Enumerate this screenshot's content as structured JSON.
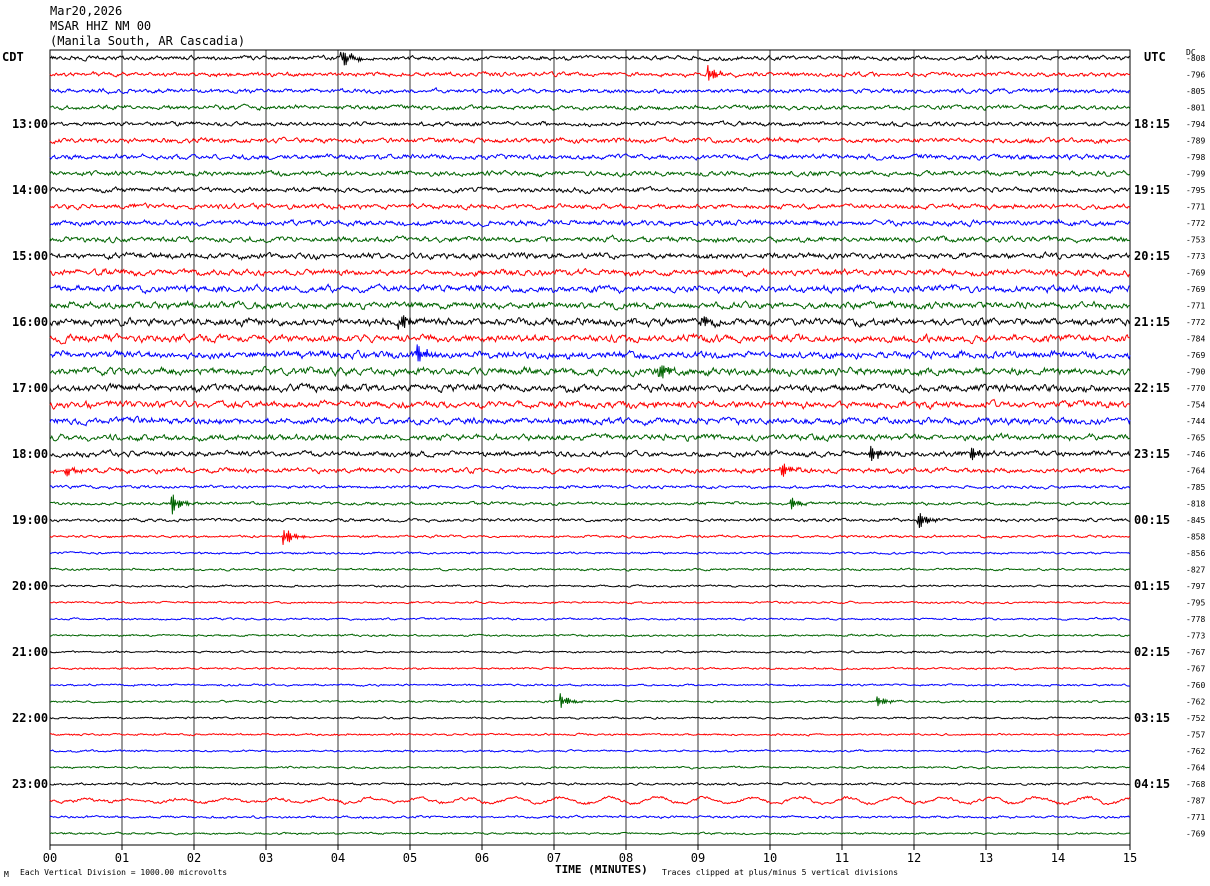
{
  "header": {
    "date": "Mar20,2026",
    "station": "MSAR HHZ NM 00",
    "location": "(Manila South, AR Cascadia)"
  },
  "left_zone": "CDT",
  "right_zone": "UTC",
  "dc_label": "DC",
  "footer": {
    "scale_note": "Each Vertical Division = 1000.00 microvolts",
    "clip_note": "Traces clipped at plus/minus 5 vertical divisions",
    "corner_mark": "M"
  },
  "colors": {
    "trace": [
      "#000000",
      "#ff0000",
      "#0000ff",
      "#006400"
    ],
    "grid": "#000000"
  },
  "chart_data": {
    "type": "line",
    "xlabel": "TIME (MINUTES)",
    "xlim": [
      0,
      15
    ],
    "x_ticks": [
      "00",
      "01",
      "02",
      "03",
      "04",
      "05",
      "06",
      "07",
      "08",
      "09",
      "10",
      "11",
      "12",
      "13",
      "14",
      "15"
    ],
    "rows": 48,
    "hour_labels_left": [
      {
        "row": 4,
        "label": "13:00"
      },
      {
        "row": 8,
        "label": "14:00"
      },
      {
        "row": 12,
        "label": "15:00"
      },
      {
        "row": 16,
        "label": "16:00"
      },
      {
        "row": 20,
        "label": "17:00"
      },
      {
        "row": 24,
        "label": "18:00"
      },
      {
        "row": 28,
        "label": "19:00"
      },
      {
        "row": 32,
        "label": "20:00"
      },
      {
        "row": 36,
        "label": "21:00"
      },
      {
        "row": 40,
        "label": "22:00"
      },
      {
        "row": 44,
        "label": "23:00"
      }
    ],
    "hour_labels_right": [
      {
        "row": 4,
        "label": "18:15"
      },
      {
        "row": 8,
        "label": "19:15"
      },
      {
        "row": 12,
        "label": "20:15"
      },
      {
        "row": 16,
        "label": "21:15"
      },
      {
        "row": 20,
        "label": "22:15"
      },
      {
        "row": 24,
        "label": "23:15"
      },
      {
        "row": 28,
        "label": "00:15"
      },
      {
        "row": 32,
        "label": "01:15"
      },
      {
        "row": 36,
        "label": "02:15"
      },
      {
        "row": 40,
        "label": "03:15"
      },
      {
        "row": 44,
        "label": "04:15"
      }
    ],
    "dc_offsets": [
      "-808",
      "-796",
      "-805",
      "-801",
      "-794",
      "-789",
      "-798",
      "-799",
      "-795",
      "-771",
      "-772",
      "-753",
      "-773",
      "-769",
      "-769",
      "-771",
      "-772",
      "-784",
      "-769",
      "-790",
      "-770",
      "-754",
      "-744",
      "-765",
      "-746",
      "-764",
      "-785",
      "-818",
      "-845",
      "-858",
      "-856",
      "-827",
      "-797",
      "-795",
      "-778",
      "-773",
      "-767",
      "-767",
      "-760",
      "-762",
      "-752",
      "-757",
      "-762",
      "-764",
      "-768",
      "-787",
      "-771",
      "-769"
    ],
    "noise_amplitude": [
      3.5,
      3.5,
      3.5,
      3.5,
      3.5,
      4,
      4,
      4,
      4,
      4,
      4.5,
      4.5,
      5,
      5,
      5.5,
      5.5,
      6,
      6,
      6,
      6,
      6,
      5.5,
      5.5,
      5,
      4.5,
      4,
      2.5,
      2.5,
      2.5,
      2,
      1.8,
      1.8,
      1.6,
      1.6,
      1.6,
      1.6,
      1.6,
      1.6,
      1.6,
      1.6,
      1.6,
      1.6,
      1.6,
      1.6,
      1.8,
      2.5,
      2,
      1.6
    ],
    "events": [
      {
        "row": 0,
        "minute": 4.05,
        "amp": 10
      },
      {
        "row": 1,
        "minute": 9.15,
        "amp": 8
      },
      {
        "row": 16,
        "minute": 4.85,
        "amp": 10
      },
      {
        "row": 16,
        "minute": 9.05,
        "amp": 8
      },
      {
        "row": 18,
        "minute": 5.1,
        "amp": 9
      },
      {
        "row": 19,
        "minute": 8.45,
        "amp": 10
      },
      {
        "row": 24,
        "minute": 11.4,
        "amp": 8
      },
      {
        "row": 24,
        "minute": 12.8,
        "amp": 7
      },
      {
        "row": 25,
        "minute": 10.15,
        "amp": 10
      },
      {
        "row": 25,
        "minute": 0.2,
        "amp": 6
      },
      {
        "row": 27,
        "minute": 1.7,
        "amp": 10
      },
      {
        "row": 27,
        "minute": 10.3,
        "amp": 6
      },
      {
        "row": 28,
        "minute": 12.05,
        "amp": 10
      },
      {
        "row": 29,
        "minute": 3.25,
        "amp": 10
      },
      {
        "row": 39,
        "minute": 7.1,
        "amp": 7
      },
      {
        "row": 39,
        "minute": 11.5,
        "amp": 5
      }
    ]
  }
}
